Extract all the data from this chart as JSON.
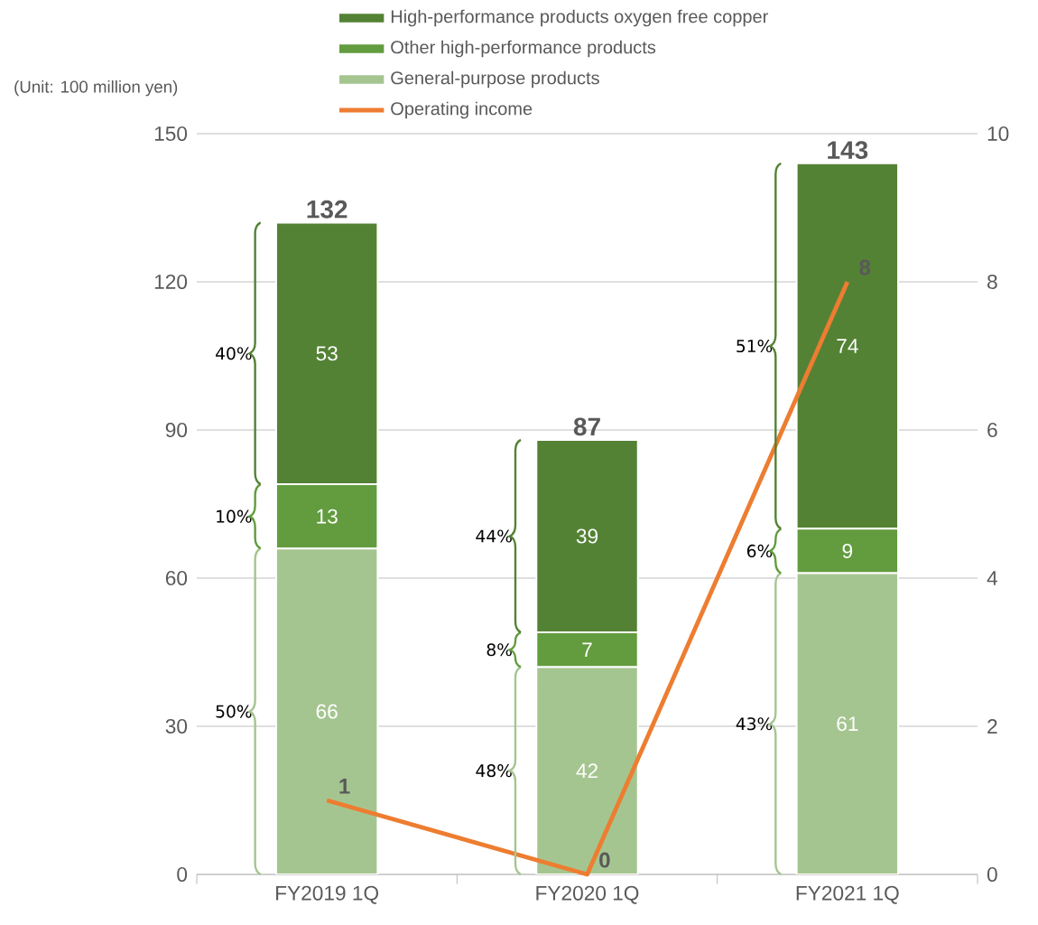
{
  "chart_data": {
    "type": "bar",
    "stacked": true,
    "ylabel": "(Unit: 100 million yen)",
    "categories": [
      "FY2019 1Q",
      "FY2020 1Q",
      "FY2021 1Q"
    ],
    "series": [
      {
        "name": "General-purpose products",
        "color": "#a5c590",
        "values": [
          66,
          42,
          61
        ]
      },
      {
        "name": "Other high-performance products",
        "color": "#629c3e",
        "values": [
          13,
          7,
          9
        ]
      },
      {
        "name": "High-performance products oxygen free copper",
        "color": "#548235",
        "values": [
          53,
          39,
          74
        ]
      },
      {
        "name": "Operating income",
        "type": "line",
        "axis": "y2",
        "color": "#ed7d31",
        "values": [
          1,
          0,
          8
        ]
      }
    ],
    "ylim": [
      0,
      150
    ],
    "yticks": [
      0,
      30,
      60,
      90,
      120,
      150
    ],
    "y2lim": [
      0,
      10
    ],
    "y2ticks": [
      0,
      2,
      4,
      6,
      8,
      10
    ],
    "grid": "y",
    "legend": "top",
    "data_labels": true,
    "totals": [
      "132",
      "87",
      "143"
    ],
    "annotations": [
      "50%",
      "10%",
      "40%",
      "48%",
      "8%",
      "44%",
      "43%",
      "6%",
      "51%"
    ]
  }
}
